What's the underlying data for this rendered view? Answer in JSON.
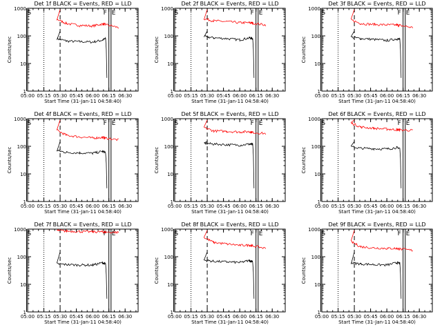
{
  "chart_data": [
    {
      "type": "line",
      "title": "Det 1f BLACK = Events, RED = LLD",
      "xlabel": "Start Time (31-Jan-11 04:58:40)",
      "ylabel": "Counts/sec",
      "yscale": "log",
      "ylim": [
        1,
        1000
      ],
      "yticks": [
        "1",
        "10",
        "100",
        "1000"
      ],
      "xticks": [
        "05:00",
        "05:15",
        "05:30",
        "05:45",
        "06:00",
        "06:15",
        "06:30"
      ],
      "xlim": [
        "04:58:40",
        "06:42"
      ],
      "markers": {
        "S": "04:59",
        "F": "06:15",
        "E": "06:17"
      },
      "series": [
        {
          "name": "Events",
          "color": "#000000",
          "values": [
            [
              5.45,
              80
            ],
            [
              5.6,
              65
            ],
            [
              5.8,
              62
            ],
            [
              6.0,
              60
            ],
            [
              6.15,
              70
            ],
            [
              6.2,
              80
            ]
          ]
        },
        {
          "name": "LLD",
          "color": "#ff0000",
          "values": [
            [
              5.45,
              400
            ],
            [
              5.6,
              280
            ],
            [
              5.8,
              240
            ],
            [
              6.0,
              230
            ],
            [
              6.15,
              270
            ],
            [
              6.2,
              260
            ],
            [
              6.4,
              200
            ]
          ]
        }
      ]
    },
    {
      "type": "line",
      "title": "Det 2f BLACK = Events, RED = LLD",
      "xlabel": "Start Time (31-Jan-11 04:58:40)",
      "ylabel": "Counts/sec",
      "yscale": "log",
      "ylim": [
        1,
        1000
      ],
      "yticks": [
        "1",
        "10",
        "100",
        "1000"
      ],
      "xticks": [
        "05:00",
        "05:15",
        "05:30",
        "05:45",
        "06:00",
        "06:15",
        "06:30"
      ],
      "xlim": [
        "04:58:40",
        "06:42"
      ],
      "markers": {
        "S": "04:59",
        "F": "06:15",
        "E": "06:17"
      },
      "series": [
        {
          "name": "Events",
          "color": "#000000",
          "values": [
            [
              5.45,
              95
            ],
            [
              5.6,
              85
            ],
            [
              5.8,
              80
            ],
            [
              6.0,
              72
            ],
            [
              6.15,
              85
            ],
            [
              6.2,
              80
            ]
          ]
        },
        {
          "name": "LLD",
          "color": "#ff0000",
          "values": [
            [
              5.45,
              420
            ],
            [
              5.6,
              350
            ],
            [
              5.8,
              330
            ],
            [
              6.0,
              300
            ],
            [
              6.15,
              300
            ],
            [
              6.2,
              290
            ],
            [
              6.4,
              250
            ]
          ]
        }
      ]
    },
    {
      "type": "line",
      "title": "Det 3f BLACK = Events, RED = LLD",
      "xlabel": "Start Time (31-Jan-11 04:58:40)",
      "ylabel": "Counts/sec",
      "yscale": "log",
      "ylim": [
        1,
        1000
      ],
      "yticks": [
        "1",
        "10",
        "100",
        "1000"
      ],
      "xticks": [
        "05:00",
        "05:15",
        "05:30",
        "05:45",
        "06:00",
        "06:15",
        "06:30"
      ],
      "xlim": [
        "04:58:40",
        "06:42"
      ],
      "markers": {
        "S": "04:59",
        "F": "06:15",
        "E": "06:17"
      },
      "series": [
        {
          "name": "Events",
          "color": "#000000",
          "values": [
            [
              5.45,
              90
            ],
            [
              5.6,
              80
            ],
            [
              5.8,
              75
            ],
            [
              6.0,
              68
            ],
            [
              6.15,
              78
            ],
            [
              6.2,
              75
            ]
          ]
        },
        {
          "name": "LLD",
          "color": "#ff0000",
          "values": [
            [
              5.45,
              380
            ],
            [
              5.6,
              280
            ],
            [
              5.8,
              260
            ],
            [
              6.0,
              250
            ],
            [
              6.15,
              250
            ],
            [
              6.2,
              240
            ],
            [
              6.4,
              200
            ]
          ]
        }
      ]
    },
    {
      "type": "line",
      "title": "Det 4f BLACK = Events, RED = LLD",
      "xlabel": "Start Time (31-Jan-11 04:58:40)",
      "ylabel": "Counts/sec",
      "yscale": "log",
      "ylim": [
        1,
        1000
      ],
      "yticks": [
        "1",
        "10",
        "100",
        "1000"
      ],
      "xticks": [
        "05:00",
        "05:15",
        "05:30",
        "05:45",
        "06:00",
        "06:15",
        "06:30"
      ],
      "xlim": [
        "04:58:40",
        "06:42"
      ],
      "markers": {
        "S": "04:59",
        "F": "06:15",
        "E": "06:17"
      },
      "series": [
        {
          "name": "Events",
          "color": "#000000",
          "values": [
            [
              5.45,
              70
            ],
            [
              5.6,
              60
            ],
            [
              5.8,
              58
            ],
            [
              6.0,
              56
            ],
            [
              6.15,
              65
            ],
            [
              6.2,
              60
            ]
          ]
        },
        {
          "name": "LLD",
          "color": "#ff0000",
          "values": [
            [
              5.45,
              380
            ],
            [
              5.6,
              250
            ],
            [
              5.8,
              220
            ],
            [
              6.0,
              200
            ],
            [
              6.15,
              210
            ],
            [
              6.2,
              200
            ],
            [
              6.4,
              170
            ]
          ]
        }
      ]
    },
    {
      "type": "line",
      "title": "Det 5f BLACK = Events, RED = LLD",
      "xlabel": "Start Time (31-Jan-11 04:58:40)",
      "ylabel": "Counts/sec",
      "yscale": "log",
      "ylim": [
        1,
        1000
      ],
      "yticks": [
        "1",
        "10",
        "100",
        "1000"
      ],
      "xticks": [
        "05:00",
        "05:15",
        "05:30",
        "05:45",
        "06:00",
        "06:15",
        "06:30"
      ],
      "xlim": [
        "04:58:40",
        "06:42"
      ],
      "markers": {
        "S": "04:59",
        "F": "06:15",
        "E": "06:17"
      },
      "series": [
        {
          "name": "Events",
          "color": "#000000",
          "values": [
            [
              5.45,
              130
            ],
            [
              5.6,
              120
            ],
            [
              5.8,
              115
            ],
            [
              6.0,
              110
            ],
            [
              6.15,
              120
            ],
            [
              6.2,
              115
            ]
          ]
        },
        {
          "name": "LLD",
          "color": "#ff0000",
          "values": [
            [
              5.45,
              480
            ],
            [
              5.6,
              360
            ],
            [
              5.8,
              350
            ],
            [
              6.0,
              330
            ],
            [
              6.15,
              340
            ],
            [
              6.2,
              320
            ],
            [
              6.4,
              290
            ]
          ]
        }
      ]
    },
    {
      "type": "line",
      "title": "Det 6f BLACK = Events, RED = LLD",
      "xlabel": "Start Time (31-Jan-11 04:58:40)",
      "ylabel": "Counts/sec",
      "yscale": "log",
      "ylim": [
        1,
        1000
      ],
      "yticks": [
        "1",
        "10",
        "100",
        "1000"
      ],
      "xticks": [
        "05:00",
        "05:15",
        "05:30",
        "05:45",
        "06:00",
        "06:15",
        "06:30"
      ],
      "xlim": [
        "04:58:40",
        "06:42"
      ],
      "markers": {
        "S": "04:59",
        "F": "06:15",
        "E": "06:17"
      },
      "series": [
        {
          "name": "Events",
          "color": "#000000",
          "values": [
            [
              5.45,
              95
            ],
            [
              5.6,
              85
            ],
            [
              5.8,
              82
            ],
            [
              6.0,
              80
            ],
            [
              6.15,
              90
            ],
            [
              6.2,
              85
            ]
          ]
        },
        {
          "name": "LLD",
          "color": "#ff0000",
          "values": [
            [
              5.45,
              700
            ],
            [
              5.6,
              500
            ],
            [
              5.8,
              450
            ],
            [
              6.0,
              420
            ],
            [
              6.15,
              400
            ],
            [
              6.2,
              390
            ],
            [
              6.4,
              380
            ]
          ]
        }
      ]
    },
    {
      "type": "line",
      "title": "Det 7f BLACK = Events, RED = LLD",
      "xlabel": "Start Time (31-Jan-11 04:58:40)",
      "ylabel": "Counts/sec",
      "yscale": "log",
      "ylim": [
        1,
        1000
      ],
      "yticks": [
        "1",
        "10",
        "100",
        "1000"
      ],
      "xticks": [
        "05:00",
        "05:15",
        "05:30",
        "05:45",
        "06:00",
        "06:15",
        "06:30"
      ],
      "xlim": [
        "04:58:40",
        "06:42"
      ],
      "markers": {
        "S": "04:59",
        "F": "06:15",
        "E": "06:17"
      },
      "series": [
        {
          "name": "Events",
          "color": "#000000",
          "values": [
            [
              5.45,
              55
            ],
            [
              5.6,
              52
            ],
            [
              5.8,
              50
            ],
            [
              6.0,
              50
            ],
            [
              6.15,
              60
            ],
            [
              6.2,
              55
            ]
          ]
        },
        {
          "name": "LLD",
          "color": "#ff0000",
          "values": [
            [
              5.45,
              900
            ],
            [
              5.6,
              850
            ],
            [
              5.8,
              820
            ],
            [
              6.0,
              800
            ],
            [
              6.15,
              800
            ],
            [
              6.2,
              780
            ],
            [
              6.4,
              760
            ]
          ]
        }
      ]
    },
    {
      "type": "line",
      "title": "Det 8f BLACK = Events, RED = LLD",
      "xlabel": "Start Time (31-Jan-11 04:58:40)",
      "ylabel": "Counts/sec",
      "yscale": "log",
      "ylim": [
        1,
        1000
      ],
      "yticks": [
        "1",
        "10",
        "100",
        "1000"
      ],
      "xticks": [
        "05:00",
        "05:15",
        "05:30",
        "05:45",
        "06:00",
        "06:15",
        "06:30"
      ],
      "xlim": [
        "04:58:40",
        "06:42"
      ],
      "markers": {
        "S": "04:59",
        "F": "06:15",
        "E": "06:17"
      },
      "series": [
        {
          "name": "Events",
          "color": "#000000",
          "values": [
            [
              5.45,
              75
            ],
            [
              5.6,
              68
            ],
            [
              5.8,
              65
            ],
            [
              6.0,
              62
            ],
            [
              6.15,
              72
            ],
            [
              6.2,
              68
            ]
          ]
        },
        {
          "name": "LLD",
          "color": "#ff0000",
          "values": [
            [
              5.45,
              500
            ],
            [
              5.6,
              330
            ],
            [
              5.8,
              290
            ],
            [
              6.0,
              260
            ],
            [
              6.15,
              260
            ],
            [
              6.2,
              250
            ],
            [
              6.4,
              200
            ]
          ]
        }
      ]
    },
    {
      "type": "line",
      "title": "Det 9f BLACK = Events, RED = LLD",
      "xlabel": "Start Time (31-Jan-11 04:58:40)",
      "ylabel": "Counts/sec",
      "yscale": "log",
      "ylim": [
        1,
        1000
      ],
      "yticks": [
        "1",
        "10",
        "100",
        "1000"
      ],
      "xticks": [
        "05:00",
        "05:15",
        "05:30",
        "05:45",
        "06:00",
        "06:15",
        "06:30"
      ],
      "xlim": [
        "04:58:40",
        "06:42"
      ],
      "markers": {
        "S": "04:59",
        "F": "06:15",
        "E": "06:17"
      },
      "series": [
        {
          "name": "Events",
          "color": "#000000",
          "values": [
            [
              5.45,
              60
            ],
            [
              5.6,
              55
            ],
            [
              5.8,
              52
            ],
            [
              6.0,
              50
            ],
            [
              6.15,
              60
            ],
            [
              6.2,
              58
            ]
          ]
        },
        {
          "name": "LLD",
          "color": "#ff0000",
          "values": [
            [
              5.45,
              350
            ],
            [
              5.6,
              230
            ],
            [
              5.8,
              210
            ],
            [
              6.0,
              200
            ],
            [
              6.15,
              200
            ],
            [
              6.2,
              190
            ],
            [
              6.4,
              170
            ]
          ]
        }
      ]
    }
  ]
}
